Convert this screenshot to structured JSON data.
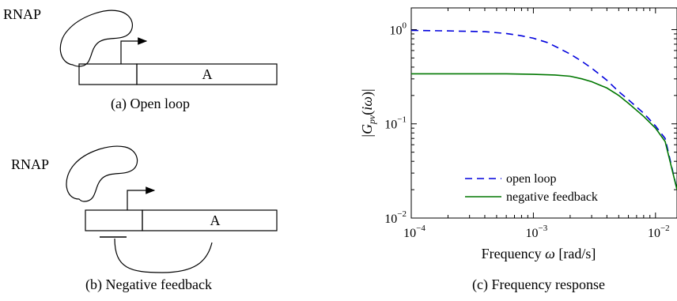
{
  "panel_a": {
    "rnap_label": "RNAP",
    "gene_label": "A",
    "caption": "(a) Open loop"
  },
  "panel_b": {
    "rnap_label": "RNAP",
    "gene_label": "A",
    "caption": "(b) Negative feedback"
  },
  "panel_c": {
    "caption": "(c) Frequency response"
  },
  "chart_data": {
    "type": "line",
    "title": "",
    "xlabel": "Frequency ω [rad/s]",
    "ylabel": "|G_pv(iω)|",
    "xscale": "log",
    "yscale": "log",
    "xlim": [
      0.0001,
      0.015
    ],
    "ylim": [
      0.01,
      1.7
    ],
    "grid": false,
    "legend_position": "bottom-center",
    "xticks": [
      {
        "base": "10",
        "exp": "−4",
        "value": 0.0001
      },
      {
        "base": "10",
        "exp": "−3",
        "value": 0.001
      },
      {
        "base": "10",
        "exp": "−2",
        "value": 0.01
      }
    ],
    "yticks": [
      {
        "base": "10",
        "exp": "−2",
        "value": 0.01
      },
      {
        "base": "10",
        "exp": "−1",
        "value": 0.1
      },
      {
        "base": "10",
        "exp": "0",
        "value": 1
      }
    ],
    "series": [
      {
        "name": "open loop",
        "color": "#0000dd",
        "dash": true,
        "x": [
          0.0001,
          0.0002,
          0.0004,
          0.0006,
          0.0008,
          0.001,
          0.0013,
          0.0016,
          0.002,
          0.0025,
          0.003,
          0.004,
          0.005,
          0.006,
          0.008,
          0.01,
          0.012,
          0.015
        ],
        "y": [
          0.98,
          0.97,
          0.95,
          0.91,
          0.86,
          0.81,
          0.73,
          0.64,
          0.55,
          0.46,
          0.39,
          0.29,
          0.22,
          0.18,
          0.13,
          0.095,
          0.07,
          0.02
        ]
      },
      {
        "name": "negative feedback",
        "color": "#007700",
        "dash": false,
        "x": [
          0.0001,
          0.0003,
          0.0006,
          0.001,
          0.0015,
          0.002,
          0.0025,
          0.003,
          0.004,
          0.005,
          0.006,
          0.008,
          0.01,
          0.012,
          0.015
        ],
        "y": [
          0.34,
          0.34,
          0.34,
          0.335,
          0.33,
          0.32,
          0.3,
          0.28,
          0.24,
          0.2,
          0.165,
          0.12,
          0.09,
          0.065,
          0.02
        ]
      }
    ]
  }
}
